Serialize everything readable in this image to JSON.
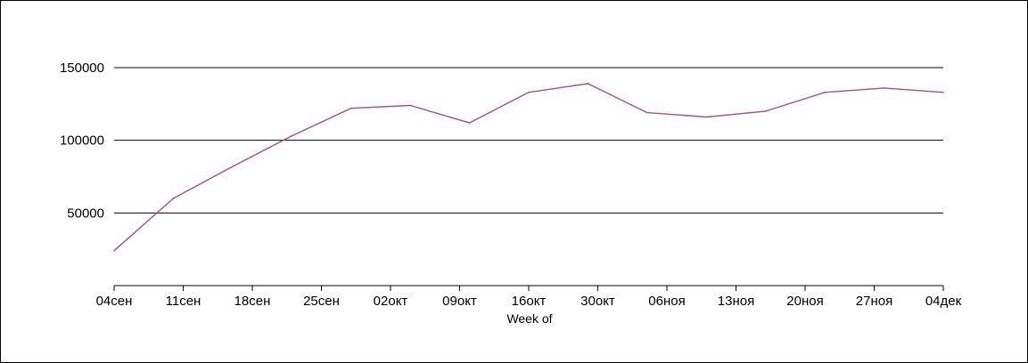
{
  "chart_data": {
    "type": "line",
    "title": "",
    "xlabel": "Week of",
    "ylabel": "",
    "x_tick_labels": [
      "04сен",
      "11сен",
      "18сен",
      "25сен",
      "02окт",
      "09окт",
      "16окт",
      "30окт",
      "06ноя",
      "13ноя",
      "20ноя",
      "27ноя",
      "04дек"
    ],
    "y_ticks": [
      50000,
      100000,
      150000
    ],
    "y_tick_labels": [
      "50000",
      "100000",
      "150000"
    ],
    "ylim": [
      0,
      175000
    ],
    "grid": "horizontal",
    "legend": "none",
    "series": [
      {
        "color": "#a8507a",
        "values": [
          24000,
          60000,
          82000,
          103000,
          122000,
          124000,
          112000,
          133000,
          139000,
          119000,
          116000,
          120000,
          133000,
          136000,
          133000
        ]
      }
    ]
  }
}
